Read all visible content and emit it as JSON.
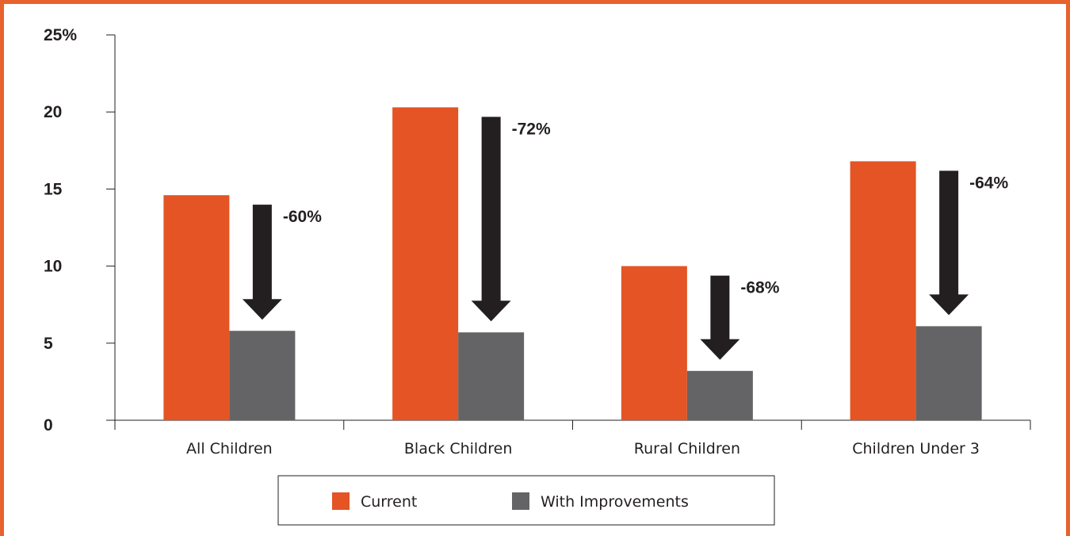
{
  "chart_data": {
    "type": "bar",
    "categories": [
      "All Children",
      "Black Children",
      "Rural Children",
      "Children Under 3"
    ],
    "series": [
      {
        "name": "Current",
        "color": "#e45424",
        "values": [
          14.6,
          20.3,
          10.0,
          16.8
        ]
      },
      {
        "name": "With Improvements",
        "color": "#646466",
        "values": [
          5.8,
          5.7,
          3.2,
          6.1
        ]
      }
    ],
    "yticks": [
      "0",
      "5",
      "10",
      "15",
      "20",
      "25%"
    ],
    "ylim": [
      0,
      25
    ],
    "annotations": [
      "-60%",
      "-72%",
      "-68%",
      "-64%"
    ],
    "arrow_color": "#231f20",
    "legend_position": "bottom-center",
    "xlabel": "",
    "ylabel": "",
    "title": ""
  }
}
